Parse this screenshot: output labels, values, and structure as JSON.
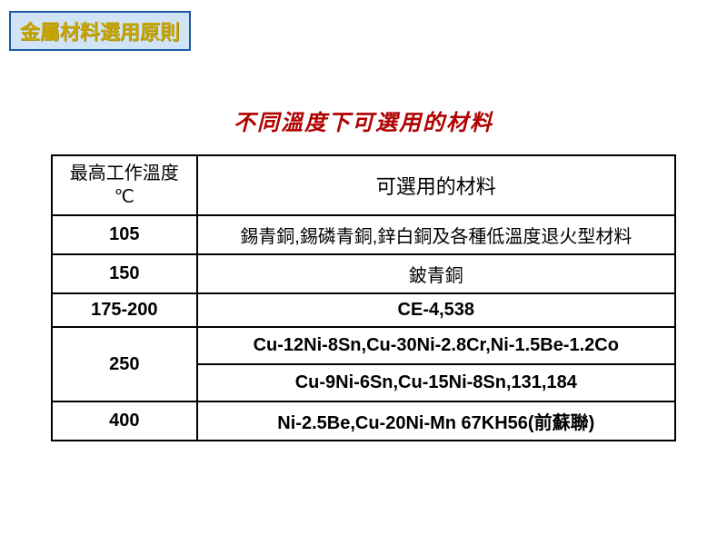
{
  "header_badge": "金屬材料選用原則",
  "title": "不同溫度下可選用的材料",
  "table": {
    "col_temp_header_line1": "最高工作溫度",
    "col_temp_header_line2": "℃",
    "col_mat_header": "可選用的材料",
    "row105_temp": "105",
    "row105_mat": "錫青銅,錫磷青銅,鋅白銅及各種低溫度退火型材料",
    "row150_temp": "150",
    "row150_mat": "鈹青銅",
    "row175_temp": "175-200",
    "row175_mat": "CE-4,538",
    "row250_temp": "250",
    "row250_mat_a": "Cu-12Ni-8Sn,Cu-30Ni-2.8Cr,Ni-1.5Be-1.2Co",
    "row250_mat_b": "Cu-9Ni-6Sn,Cu-15Ni-8Sn,131,184",
    "row400_temp": "400",
    "row400_mat": "Ni-2.5Be,Cu-20Ni-Mn  67KH56(前蘇聯)"
  },
  "colors": {
    "badge_bg": "#d0e4f5",
    "badge_border": "#1e5aa0",
    "badge_text": "#c8a500",
    "title_text": "#b00000",
    "border": "#000000",
    "background": "#ffffff"
  },
  "fonts": {
    "badge_size_pt": 22,
    "title_size_pt": 24,
    "cell_size_pt": 20,
    "header_mat_size_pt": 22
  }
}
